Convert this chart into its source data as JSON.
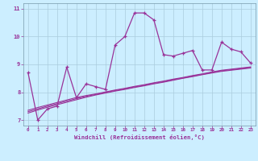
{
  "hours": [
    0,
    1,
    2,
    3,
    4,
    5,
    6,
    7,
    8,
    9,
    10,
    11,
    12,
    13,
    14,
    15,
    16,
    17,
    18,
    19,
    20,
    21,
    22,
    23
  ],
  "temp": [
    8.7,
    7.0,
    7.4,
    7.5,
    8.9,
    7.8,
    8.3,
    8.2,
    8.1,
    9.7,
    10.0,
    10.85,
    10.85,
    10.6,
    9.35,
    9.3,
    9.4,
    9.5,
    8.8,
    8.8,
    9.8,
    9.55,
    9.45,
    9.05
  ],
  "trend1": [
    7.35,
    7.45,
    7.54,
    7.63,
    7.72,
    7.81,
    7.88,
    7.94,
    8.01,
    8.08,
    8.14,
    8.21,
    8.27,
    8.34,
    8.4,
    8.47,
    8.53,
    8.6,
    8.66,
    8.73,
    8.79,
    8.83,
    8.87,
    8.91
  ],
  "trend2": [
    7.3,
    7.4,
    7.5,
    7.59,
    7.68,
    7.77,
    7.85,
    7.92,
    7.99,
    8.06,
    8.12,
    8.19,
    8.25,
    8.32,
    8.38,
    8.45,
    8.51,
    8.58,
    8.64,
    8.71,
    8.77,
    8.81,
    8.85,
    8.89
  ],
  "trend3": [
    7.25,
    7.36,
    7.46,
    7.55,
    7.64,
    7.73,
    7.82,
    7.9,
    7.97,
    8.04,
    8.1,
    8.17,
    8.23,
    8.3,
    8.36,
    8.43,
    8.5,
    8.56,
    8.63,
    8.69,
    8.75,
    8.79,
    8.83,
    8.87
  ],
  "line_color": "#993399",
  "bg_color": "#cceeff",
  "grid_color": "#aaccdd",
  "xlabel": "Windchill (Refroidissement éolien,°C)",
  "ylim": [
    6.8,
    11.2
  ],
  "xlim": [
    -0.5,
    23.5
  ],
  "yticks": [
    7,
    8,
    9,
    10,
    11
  ],
  "xticks": [
    0,
    1,
    2,
    3,
    4,
    5,
    6,
    7,
    8,
    9,
    10,
    11,
    12,
    13,
    14,
    15,
    16,
    17,
    18,
    19,
    20,
    21,
    22,
    23
  ]
}
